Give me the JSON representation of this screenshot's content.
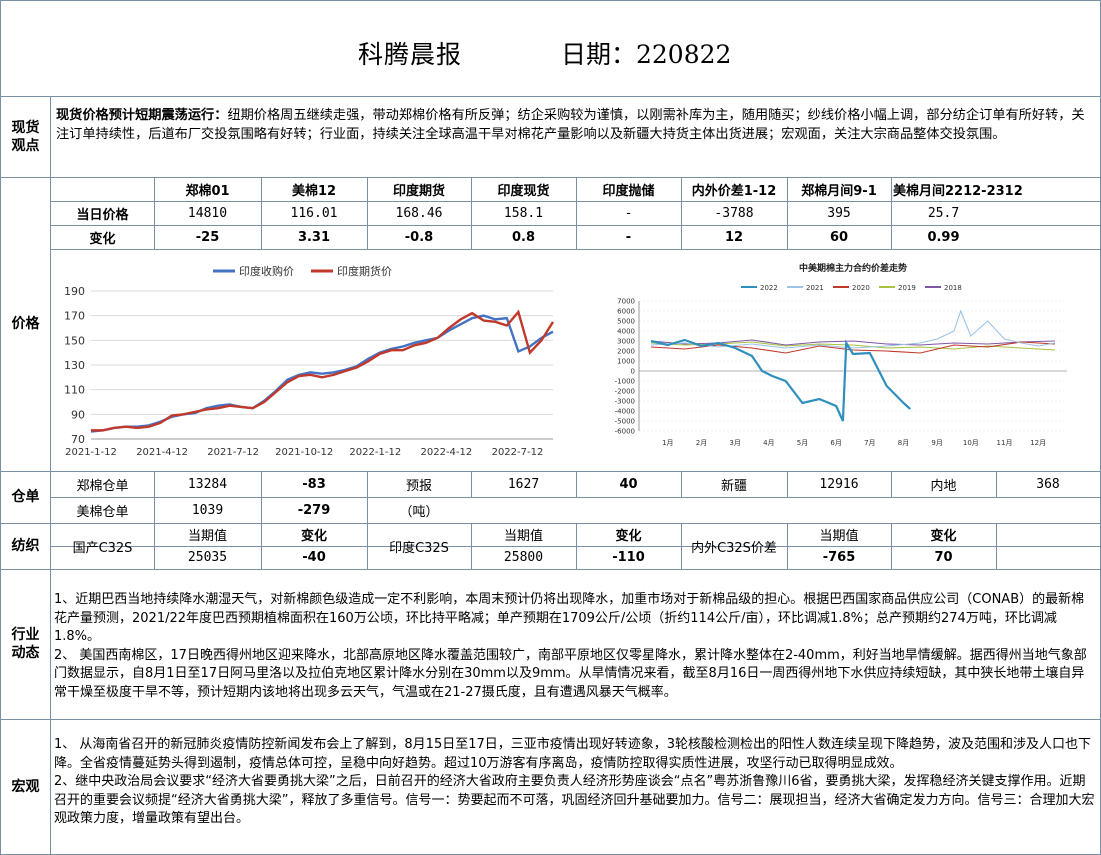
{
  "header": {
    "title": "科腾晨报",
    "date_label": "日期：220822"
  },
  "sections": {
    "spot": "现货\n观点",
    "price": "价格",
    "warehouse": "仓单",
    "textile": "纺织",
    "industry": "行业\n动态",
    "macro": "宏观"
  },
  "summary": {
    "lead": "现货价格预计短期震荡运行：",
    "body": "纽期价格周五继续走强，带动郑棉价格有所反弹；纺企采购较为谨慎，以刚需补库为主，随用随买；纱线价格小幅上调，部分纺企订单有所好转，关注订单持续性，后道布厂交投氛围略有好转；行业面，持续关注全球高温干旱对棉花产量影响以及新疆大持货主体出货进展；宏观面，关注大宗商品整体交投氛围。"
  },
  "price_table": {
    "headers": [
      "郑棉01",
      "美棉12",
      "印度期货",
      "印度现货",
      "印度抛储",
      "内外价差1-12",
      "郑棉月间9-1",
      "美棉月间2212-2312"
    ],
    "row1_label": "当日价格",
    "row1": [
      "14810",
      "116.01",
      "168.46",
      "158.1",
      "-",
      "-3788",
      "395",
      "25.7"
    ],
    "row2_label": "变化",
    "row2": [
      "-25",
      "3.31",
      "-0.8",
      "0.8",
      "-",
      "12",
      "60",
      "0.99"
    ]
  },
  "chart_data": [
    {
      "type": "line",
      "title": "",
      "legend": [
        "印度收购价",
        "印度期货价"
      ],
      "legend_position": "top",
      "x_ticks": [
        "2021-1-12",
        "2021-4-12",
        "2021-7-12",
        "2021-10-12",
        "2022-1-12",
        "2022-4-12",
        "2022-7-12"
      ],
      "ylim": [
        70,
        190
      ],
      "y_ticks": [
        70,
        90,
        110,
        130,
        150,
        170,
        190
      ],
      "colors": [
        "#4472c4",
        "#c0392b"
      ],
      "grid": true,
      "series": [
        {
          "name": "印度收购价",
          "x": [
            0,
            2,
            4,
            6,
            8,
            10,
            12,
            14,
            16,
            18,
            20,
            22,
            24,
            26,
            28,
            30,
            32,
            34,
            36,
            38,
            40,
            42,
            44,
            46,
            48,
            50,
            52,
            54,
            56,
            58,
            60,
            62,
            64,
            66,
            68,
            70,
            72,
            74,
            76,
            78,
            80
          ],
          "values": [
            76,
            77,
            79,
            80,
            80,
            81,
            84,
            88,
            90,
            91,
            95,
            97,
            98,
            96,
            95,
            101,
            109,
            118,
            122,
            124,
            123,
            124,
            126,
            129,
            135,
            140,
            143,
            145,
            148,
            150,
            152,
            158,
            163,
            168,
            170,
            167,
            168,
            141,
            145,
            152,
            157
          ]
        },
        {
          "name": "印度期货价",
          "x": [
            0,
            2,
            4,
            6,
            8,
            10,
            12,
            14,
            16,
            18,
            20,
            22,
            24,
            26,
            28,
            30,
            32,
            34,
            36,
            38,
            40,
            42,
            44,
            46,
            48,
            50,
            52,
            54,
            56,
            58,
            60,
            62,
            64,
            66,
            68,
            70,
            72,
            74,
            76,
            78,
            80
          ],
          "values": [
            77,
            77,
            79,
            80,
            79,
            80,
            83,
            89,
            90,
            92,
            94,
            95,
            97,
            96,
            95,
            100,
            108,
            116,
            121,
            122,
            120,
            122,
            125,
            128,
            133,
            139,
            142,
            142,
            146,
            148,
            152,
            160,
            167,
            172,
            166,
            165,
            162,
            173,
            140,
            150,
            165
          ]
        }
      ]
    },
    {
      "type": "line",
      "title": "中美期棉主力合约价差走势",
      "legend": [
        "2022",
        "2021",
        "2020",
        "2019",
        "2018"
      ],
      "legend_position": "top",
      "x_ticks": [
        "1月",
        "2月",
        "3月",
        "4月",
        "5月",
        "6月",
        "7月",
        "8月",
        "9月",
        "10月",
        "11月",
        "12月"
      ],
      "ylim": [
        -6000,
        7000
      ],
      "y_ticks": [
        7000,
        6000,
        5000,
        4000,
        3000,
        2000,
        1000,
        0,
        -1000,
        -2000,
        -3000,
        -4000,
        -5000,
        -6000
      ],
      "colors": [
        "#2e8fbf",
        "#9dc3e6",
        "#c0392b",
        "#a9c23f",
        "#7e57a6"
      ],
      "grid": true,
      "series": [
        {
          "name": "2022",
          "x": [
            0,
            0.5,
            1,
            1.5,
            2,
            2.5,
            3,
            3.3,
            3.6,
            4,
            4.5,
            5,
            5.5,
            5.7,
            5.8,
            6,
            6.5,
            7,
            7.5,
            7.7
          ],
          "values": [
            3000,
            2600,
            3100,
            2500,
            2800,
            2300,
            1500,
            0,
            -500,
            -1000,
            -3200,
            -2800,
            -3500,
            -5000,
            2800,
            1700,
            1800,
            -1500,
            -3200,
            -3800
          ]
        },
        {
          "name": "2021",
          "x": [
            0,
            1,
            2,
            3,
            4,
            5,
            6,
            7,
            8,
            8.5,
            9,
            9.2,
            9.5,
            10,
            10.5,
            11,
            11.5,
            12
          ],
          "values": [
            2600,
            2800,
            2400,
            2700,
            2300,
            2600,
            2300,
            2500,
            2800,
            3200,
            4000,
            6000,
            3500,
            5000,
            3200,
            2800,
            2500,
            2800
          ]
        },
        {
          "name": "2020",
          "x": [
            0,
            1,
            2,
            3,
            4,
            5,
            6,
            7,
            8,
            9,
            10,
            11,
            12
          ],
          "values": [
            2400,
            2200,
            2600,
            2300,
            1800,
            2500,
            2100,
            2000,
            1800,
            2600,
            2400,
            2900,
            2700
          ]
        },
        {
          "name": "2019",
          "x": [
            0,
            1,
            2,
            3,
            4,
            5,
            6,
            7,
            8,
            9,
            10,
            11,
            12
          ],
          "values": [
            2800,
            2600,
            2700,
            2900,
            2500,
            2700,
            2600,
            2300,
            2400,
            2200,
            2500,
            2300,
            2100
          ]
        },
        {
          "name": "2018",
          "x": [
            0,
            1,
            2,
            3,
            4,
            5,
            6,
            7,
            8,
            9,
            10,
            11,
            12
          ],
          "values": [
            3000,
            2700,
            2800,
            3100,
            2600,
            2900,
            3000,
            2700,
            2600,
            2800,
            2700,
            2900,
            3000
          ]
        }
      ]
    }
  ],
  "warehouse": {
    "zz_label": "郑棉仓单",
    "zz_value": "13284",
    "zz_change": "-83",
    "forecast_label": "预报",
    "forecast_value": "1627",
    "forecast_change": "40",
    "xinjiang_label": "新疆",
    "xinjiang_value": "12916",
    "inland_label": "内地",
    "inland_value": "368",
    "us_label": "美棉仓单",
    "us_value": "1039",
    "us_change": "-279",
    "unit": "（吨）"
  },
  "textile": {
    "current_label": "当期值",
    "change_label": "变化",
    "domestic_label": "国产C32S",
    "domestic_value": "25035",
    "domestic_change": "-40",
    "india_label": "印度C32S",
    "india_value": "25800",
    "india_change": "-110",
    "spread_label": "内外C32S价差",
    "spread_value": "-765",
    "spread_change": "70"
  },
  "industry": {
    "p1": "1、近期巴西当地持续降水潮湿天气，对新棉颜色级造成一定不利影响，本周末预计仍将出现降水，加重市场对于新棉品级的担心。根据巴西国家商品供应公司（CONAB）的最新棉花产量预测，2021/22年度巴西预期植棉面积在160万公顷，环比持平略减；单产预期在1709公斤/公顷（折约114公斤/亩），环比调减1.8%；总产预期约274万吨，环比调减1.8%。",
    "p2": "2、 美国西南棉区，17日晚西得州地区迎来降水，北部高原地区降水覆盖范围较广，南部平原地区仅零星降水，累计降水整体在2-40mm，利好当地旱情缓解。据西得州当地气象部门数据显示，自8月1日至17日阿马里洛以及拉伯克地区累计降水分别在30mm以及9mm。从旱情情况来看，截至8月16日一周西得州地下水供应持续短缺，其中狭长地带土壤自异常干燥至极度干旱不等，预计短期内该地将出现多云天气，气温或在21-27摄氏度，且有遭遇风暴天气概率。"
  },
  "macro": {
    "p1": "1、   从海南省召开的新冠肺炎疫情防控新闻发布会上了解到，8月15日至17日，三亚市疫情出现好转迹象，3轮核酸检测检出的阳性人数连续呈现下降趋势，波及范围和涉及人口也下降。全省疫情蔓延势头得到遏制，疫情总体可控，呈稳中向好趋势。超过10万游客有序离岛，疫情防控取得实质性进展，攻坚行动已取得明显成效。",
    "p2": "2、继中央政治局会议要求“经济大省要勇挑大梁”之后，日前召开的经济大省政府主要负责人经济形势座谈会“点名”粤苏浙鲁豫川6省，要勇挑大梁，发挥稳经济关键支撑作用。近期召开的重要会议频提“经济大省勇挑大梁”，释放了多重信号。信号一：势要起而不可落，巩固经济回升基础要加力。信号二：展现担当，经济大省确定发力方向。信号三：合理加大宏观政策力度，增量政策有望出台。"
  }
}
